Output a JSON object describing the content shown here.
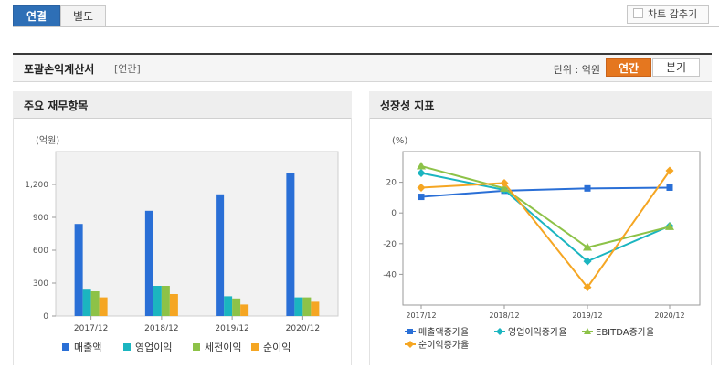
{
  "tabs": [
    {
      "label": "연결"
    },
    {
      "label": "별도"
    }
  ],
  "hide_chart": {
    "label": "차트 감추기"
  },
  "statement": {
    "title": "포괄손익계산서",
    "sub": "[연간]",
    "unit_label": "단위 : 억원",
    "period_annual": "연간",
    "period_quarter": "분기"
  },
  "panels": {
    "left": {
      "title": "주요 재무항목"
    },
    "right": {
      "title": "성장성 지표"
    }
  },
  "colors": {
    "blue": "#2a6fd6",
    "cyan": "#1bb5c0",
    "green": "#8dc248",
    "orange": "#f5a623",
    "accent": "#e5771f",
    "tab_active": "#2e6fb6"
  },
  "chart_data": [
    {
      "type": "bar",
      "unit": "(억원)",
      "categories": [
        "2017/12",
        "2018/12",
        "2019/12",
        "2020/12"
      ],
      "ylim": [
        0,
        1500
      ],
      "yticks": [
        "0",
        "300",
        "600",
        "900",
        "1,200"
      ],
      "ytick_values": [
        0,
        300,
        600,
        900,
        1200
      ],
      "grid": false,
      "legend_position": "bottom",
      "series": [
        {
          "name": "매출액",
          "color": "#2a6fd6",
          "values": [
            840,
            960,
            1110,
            1300
          ]
        },
        {
          "name": "영업이익",
          "color": "#1bb5c0",
          "values": [
            240,
            275,
            180,
            170
          ]
        },
        {
          "name": "세전이익",
          "color": "#8dc248",
          "values": [
            225,
            275,
            160,
            170
          ]
        },
        {
          "name": "순이익",
          "color": "#f5a623",
          "values": [
            170,
            200,
            105,
            130
          ]
        }
      ]
    },
    {
      "type": "line",
      "unit": "(%)",
      "categories": [
        "2017/12",
        "2018/12",
        "2019/12",
        "2020/12"
      ],
      "ylim": [
        -60,
        40
      ],
      "yticks": [
        "-40",
        "-20",
        "0",
        "20"
      ],
      "ytick_values": [
        -40,
        -20,
        0,
        20
      ],
      "grid": false,
      "legend_position": "bottom",
      "series": [
        {
          "name": "매출액증가율",
          "color": "#2a6fd6",
          "marker": "square",
          "values": [
            10.5,
            14.5,
            16,
            16.5
          ]
        },
        {
          "name": "영업이익증가율",
          "color": "#1bb5c0",
          "marker": "diamond",
          "values": [
            26,
            15,
            -31.5,
            -8.5
          ]
        },
        {
          "name": "EBITDA증가율",
          "color": "#8dc248",
          "marker": "triangle",
          "values": [
            30.5,
            16,
            -22.5,
            -9
          ]
        },
        {
          "name": "순이익증가율",
          "color": "#f5a623",
          "marker": "diamond",
          "values": [
            16.5,
            19.5,
            -48.5,
            27.5
          ]
        }
      ]
    }
  ]
}
